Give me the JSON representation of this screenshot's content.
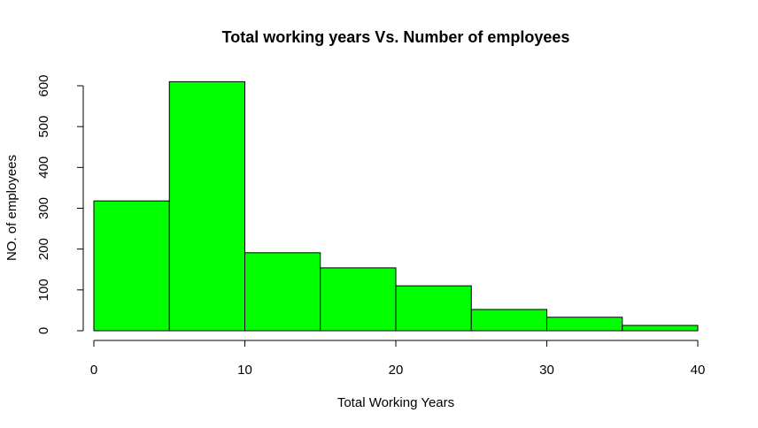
{
  "chart_data": {
    "type": "bar",
    "subtype": "histogram",
    "title": "Total working years Vs. Number of employees",
    "xlabel": "Total Working Years",
    "ylabel": "NO. of employees",
    "bins": [
      {
        "from": 0,
        "to": 5,
        "count": 318
      },
      {
        "from": 5,
        "to": 10,
        "count": 610
      },
      {
        "from": 10,
        "to": 15,
        "count": 191
      },
      {
        "from": 15,
        "to": 20,
        "count": 154
      },
      {
        "from": 20,
        "to": 25,
        "count": 110
      },
      {
        "from": 25,
        "to": 30,
        "count": 52
      },
      {
        "from": 30,
        "to": 35,
        "count": 33
      },
      {
        "from": 35,
        "to": 40,
        "count": 13
      }
    ],
    "xlim": [
      0,
      40
    ],
    "ylim": [
      0,
      600
    ],
    "x_ticks": [
      0,
      10,
      20,
      30,
      40
    ],
    "y_ticks": [
      0,
      100,
      200,
      300,
      400,
      500,
      600
    ],
    "bar_color": "#00ff00",
    "border_color": "#000000",
    "grid": false,
    "legend": "none"
  }
}
